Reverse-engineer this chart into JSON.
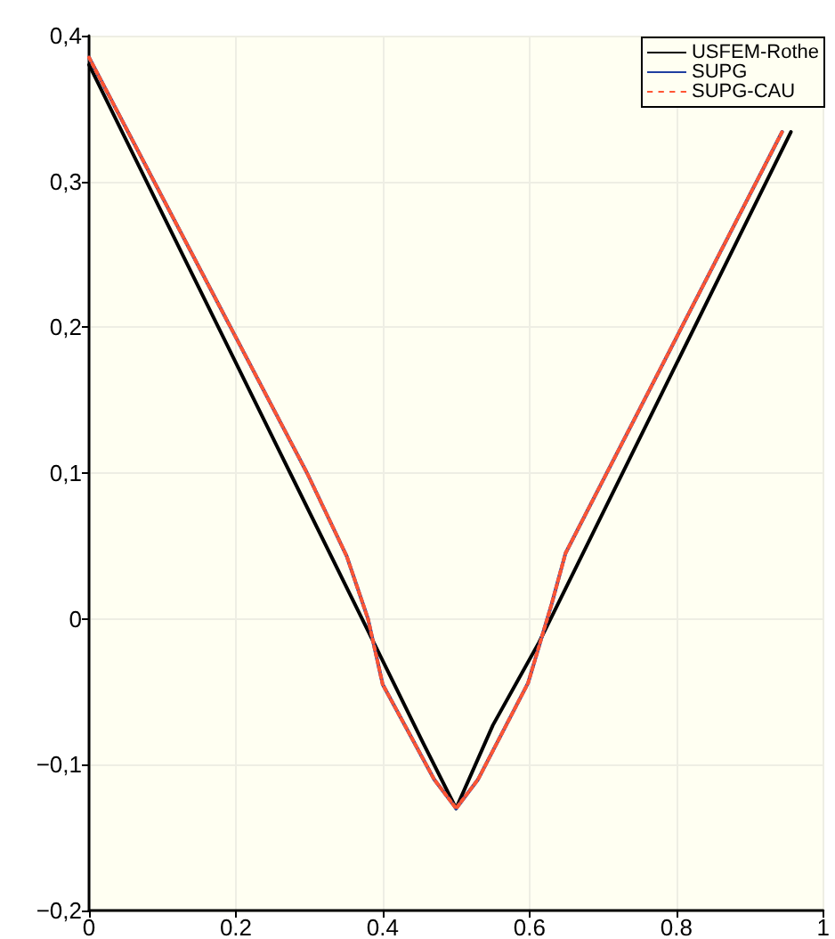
{
  "chart_data": {
    "type": "line",
    "series": [
      {
        "name": "USFEM-Rothe",
        "color": "#000000",
        "line_style": "solid",
        "x": [
          0,
          0.274,
          0.37,
          0.455,
          0.5,
          0.55,
          0.613,
          0.956
        ],
        "values": [
          0.38,
          0.1,
          0.002,
          -0.085,
          -0.13,
          -0.073,
          -0.016,
          0.334
        ]
      },
      {
        "name": "SUPG",
        "color": "#1f3fa0",
        "line_style": "solid",
        "x": [
          0,
          0.297,
          0.351,
          0.38,
          0.4,
          0.47,
          0.5,
          0.53,
          0.598,
          0.63,
          0.649,
          0.944
        ],
        "values": [
          0.385,
          0.1,
          0.043,
          0.0,
          -0.045,
          -0.11,
          -0.13,
          -0.11,
          -0.044,
          0.01,
          0.045,
          0.334
        ]
      },
      {
        "name": "SUPG-CAU",
        "color": "#ff5533",
        "line_style": "dotted",
        "x": [
          0,
          0.297,
          0.351,
          0.38,
          0.4,
          0.47,
          0.5,
          0.53,
          0.598,
          0.63,
          0.649,
          0.944
        ],
        "values": [
          0.385,
          0.1,
          0.043,
          0.0,
          -0.045,
          -0.11,
          -0.13,
          -0.11,
          -0.044,
          0.01,
          0.045,
          0.334
        ]
      }
    ],
    "xlim": [
      0,
      1
    ],
    "xticks": [
      0,
      0.2,
      0.4,
      0.6,
      0.8,
      1
    ],
    "ylim": [
      -0.2,
      0.4
    ],
    "yticks": [
      {
        "value": -0.2,
        "label": "−0,2"
      },
      {
        "value": -0.1,
        "label": "−0,1"
      },
      0,
      {
        "value": 0.1,
        "label": "0,1"
      },
      {
        "value": 0.2,
        "label": "0,2"
      },
      {
        "value": 0.3,
        "label": "0,3"
      },
      {
        "value": 0.4,
        "label": "0,4"
      }
    ],
    "grid": true,
    "legend": "top right",
    "marker": "none"
  }
}
